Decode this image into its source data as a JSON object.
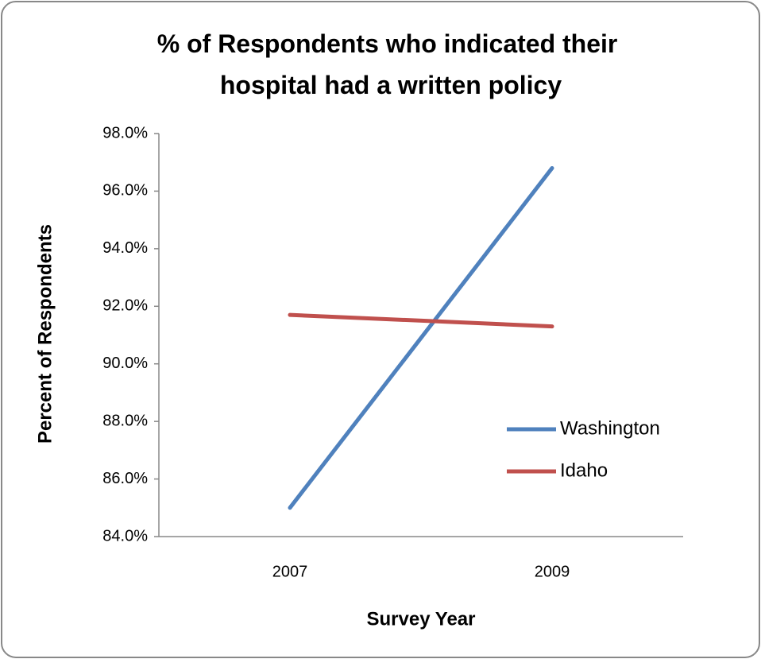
{
  "chart_data": {
    "type": "line",
    "title": [
      "% of Respondents who indicated their",
      "hospital had a written policy"
    ],
    "x_label": "Survey Year",
    "y_label": "Percent of Respondents",
    "categories": [
      "2007",
      "2009"
    ],
    "series": [
      {
        "name": "Washington",
        "color": "#4f81bd",
        "values": [
          85.0,
          96.8
        ]
      },
      {
        "name": "Idaho",
        "color": "#c0504d",
        "values": [
          91.7,
          91.3
        ]
      }
    ],
    "ylim": [
      84,
      98
    ],
    "yticks": [
      {
        "value": 84,
        "label": "84.0%"
      },
      {
        "value": 86,
        "label": "86.0%"
      },
      {
        "value": 88,
        "label": "88.0%"
      },
      {
        "value": 90,
        "label": "90.0%"
      },
      {
        "value": 92,
        "label": "92.0%"
      },
      {
        "value": 94,
        "label": "94.0%"
      },
      {
        "value": 96,
        "label": "96.0%"
      },
      {
        "value": 98,
        "label": "98.0%"
      }
    ],
    "grid": false,
    "legend": "right"
  }
}
